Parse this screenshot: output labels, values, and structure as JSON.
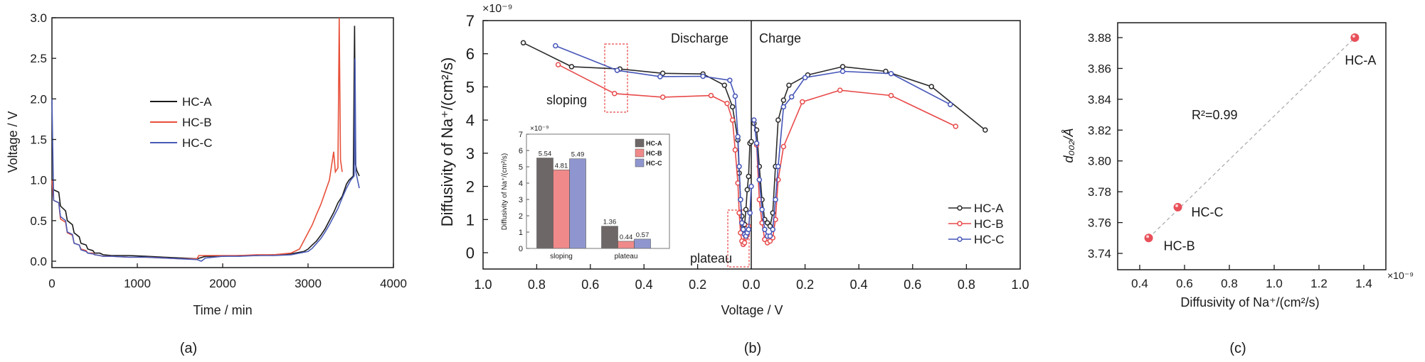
{
  "chart_data": [
    {
      "id": "a",
      "type": "line",
      "panel_label": "(a)",
      "xlabel": "Time / min",
      "ylabel": "Voltage / V",
      "xlim": [
        0,
        4000
      ],
      "ylim": [
        -0.1,
        3.0
      ],
      "xticks": [
        0,
        1000,
        2000,
        3000,
        4000
      ],
      "yticks": [
        0.0,
        0.5,
        1.0,
        1.5,
        2.0,
        2.5,
        3.0
      ],
      "ytick_labels": [
        "0.0",
        "0.5",
        "1.0",
        "1.5",
        "2.0",
        "2.5",
        "3.0"
      ],
      "legend": {
        "placement": "center-left",
        "entries": [
          "HC-A",
          "HC-B",
          "HC-C"
        ]
      },
      "series": [
        {
          "name": "HC-A",
          "color": "#1a1a1a",
          "x": [
            0,
            20,
            80,
            100,
            160,
            180,
            240,
            260,
            320,
            340,
            400,
            420,
            480,
            500,
            560,
            600,
            700,
            900,
            1100,
            1300,
            1500,
            1700,
            1800,
            2000,
            2200,
            2400,
            2600,
            2800,
            2950,
            3000,
            3050,
            3100,
            3150,
            3200,
            3250,
            3300,
            3350,
            3400,
            3450,
            3480,
            3530,
            3545,
            3555,
            3570,
            3600
          ],
          "y": [
            1.0,
            0.88,
            0.85,
            0.68,
            0.62,
            0.5,
            0.45,
            0.35,
            0.3,
            0.22,
            0.2,
            0.15,
            0.13,
            0.1,
            0.1,
            0.08,
            0.07,
            0.07,
            0.06,
            0.05,
            0.04,
            0.03,
            0.06,
            0.06,
            0.07,
            0.07,
            0.08,
            0.09,
            0.12,
            0.15,
            0.2,
            0.25,
            0.32,
            0.4,
            0.5,
            0.6,
            0.72,
            0.8,
            0.95,
            1.0,
            1.05,
            2.9,
            1.2,
            1.12,
            1.05
          ]
        },
        {
          "name": "HC-B",
          "color": "#e8503a",
          "x": [
            0,
            20,
            80,
            100,
            160,
            180,
            240,
            260,
            320,
            340,
            400,
            420,
            480,
            500,
            560,
            600,
            700,
            900,
            1100,
            1300,
            1500,
            1700,
            1720,
            1800,
            2000,
            2200,
            2400,
            2600,
            2800,
            2900,
            2950,
            3000,
            3050,
            3100,
            3150,
            3200,
            3250,
            3300,
            3320,
            3350,
            3365,
            3380,
            3400
          ],
          "y": [
            1.0,
            0.75,
            0.72,
            0.52,
            0.48,
            0.35,
            0.32,
            0.22,
            0.2,
            0.15,
            0.13,
            0.1,
            0.1,
            0.08,
            0.07,
            0.06,
            0.06,
            0.05,
            0.05,
            0.04,
            0.03,
            0.03,
            0.07,
            0.07,
            0.07,
            0.07,
            0.08,
            0.08,
            0.1,
            0.15,
            0.25,
            0.35,
            0.45,
            0.58,
            0.7,
            0.85,
            1.0,
            1.35,
            1.1,
            1.15,
            3.0,
            1.25,
            1.1
          ]
        },
        {
          "name": "HC-C",
          "color": "#4a5bb5",
          "x": [
            0,
            20,
            80,
            100,
            160,
            180,
            240,
            260,
            320,
            340,
            400,
            420,
            480,
            500,
            560,
            600,
            700,
            900,
            1100,
            1300,
            1500,
            1700,
            1750,
            1800,
            2000,
            2200,
            2400,
            2600,
            2800,
            3000,
            3050,
            3100,
            3150,
            3200,
            3250,
            3300,
            3350,
            3400,
            3450,
            3500,
            3540,
            3550,
            3560,
            3600
          ],
          "y": [
            2.0,
            0.75,
            0.72,
            0.55,
            0.5,
            0.36,
            0.33,
            0.22,
            0.2,
            0.14,
            0.12,
            0.1,
            0.09,
            0.08,
            0.07,
            0.06,
            0.06,
            0.05,
            0.05,
            0.04,
            0.03,
            0.02,
            0.0,
            0.04,
            0.06,
            0.06,
            0.07,
            0.07,
            0.08,
            0.12,
            0.16,
            0.22,
            0.28,
            0.36,
            0.45,
            0.55,
            0.65,
            0.78,
            0.9,
            1.0,
            1.05,
            2.5,
            1.1,
            0.9
          ]
        }
      ]
    },
    {
      "id": "b",
      "type": "line",
      "panel_label": "(b)",
      "xlabel": "Voltage / V",
      "ylabel": "Diffusivity of Na⁺/(cm²/s)",
      "y_multiplier": "×10⁻⁹",
      "ylim": [
        -0.5,
        7
      ],
      "xlim_discharge": [
        1.0,
        0.0
      ],
      "xlim_charge": [
        0.0,
        1.0
      ],
      "xticks_discharge": [
        "1.0",
        "0.8",
        "0.6",
        "0.4",
        "0.2",
        "0.0"
      ],
      "xticks_charge": [
        "0.2",
        "0.4",
        "0.6",
        "0.8",
        "1.0"
      ],
      "yticks": [
        0,
        1,
        2,
        3,
        4,
        5,
        6,
        7
      ],
      "annotations": {
        "discharge": "Discharge",
        "charge": "Charge",
        "sloping": "sloping",
        "plateau": "plateau"
      },
      "legend": {
        "placement": "bottom-right",
        "entries": [
          "HC-A",
          "HC-B",
          "HC-C"
        ]
      },
      "series": [
        {
          "name": "HC-A",
          "color": "#2b2b2b",
          "discharge": {
            "x": [
              0.85,
              0.67,
              0.49,
              0.33,
              0.18,
              0.1,
              0.07,
              0.05,
              0.045,
              0.04,
              0.035,
              0.03,
              0.025,
              0.02,
              0.015,
              0.01,
              0.005,
              0.0
            ],
            "y": [
              6.33,
              5.61,
              5.54,
              5.41,
              5.39,
              5.05,
              4.4,
              3.4,
              2.4,
              1.6,
              1.1,
              0.8,
              0.85,
              1.3,
              1.9,
              2.3,
              3.3,
              3.35
            ]
          },
          "charge": {
            "x": [
              0.01,
              0.02,
              0.03,
              0.04,
              0.05,
              0.06,
              0.07,
              0.08,
              0.09,
              0.1,
              0.12,
              0.14,
              0.21,
              0.34,
              0.5,
              0.67,
              0.87
            ],
            "y": [
              3.9,
              3.7,
              2.6,
              1.6,
              1.0,
              0.9,
              0.8,
              1.2,
              2.6,
              4.0,
              4.6,
              5.05,
              5.36,
              5.61,
              5.47,
              5.01,
              3.7
            ]
          }
        },
        {
          "name": "HC-B",
          "color": "#e84a4a",
          "discharge": {
            "x": [
              0.72,
              0.51,
              0.33,
              0.15,
              0.09,
              0.07,
              0.06,
              0.05,
              0.045,
              0.04,
              0.035,
              0.03,
              0.025,
              0.02,
              0.015,
              0.01
            ],
            "y": [
              5.67,
              4.8,
              4.69,
              4.74,
              4.5,
              4.0,
              3.1,
              2.1,
              1.2,
              0.6,
              0.35,
              0.25,
              0.3,
              0.45,
              0.55,
              0.8
            ]
          },
          "charge": {
            "x": [
              0.02,
              0.03,
              0.04,
              0.05,
              0.06,
              0.07,
              0.08,
              0.09,
              0.1,
              0.12,
              0.19,
              0.33,
              0.52,
              0.76
            ],
            "y": [
              3.25,
              1.6,
              0.9,
              0.4,
              0.3,
              0.35,
              0.45,
              1.0,
              2.2,
              3.2,
              4.55,
              4.9,
              4.74,
              3.81
            ]
          }
        },
        {
          "name": "HC-C",
          "color": "#4555b8",
          "discharge": {
            "x": [
              0.73,
              0.5,
              0.34,
              0.18,
              0.08,
              0.06,
              0.05,
              0.045,
              0.04,
              0.035,
              0.03,
              0.025,
              0.02,
              0.015,
              0.01,
              0.005,
              0.0
            ],
            "y": [
              6.24,
              5.5,
              5.31,
              5.32,
              5.2,
              4.72,
              3.5,
              2.6,
              1.6,
              0.9,
              0.7,
              0.55,
              0.5,
              0.6,
              0.7,
              1.2,
              2.0
            ]
          },
          "charge": {
            "x": [
              0.01,
              0.02,
              0.03,
              0.04,
              0.05,
              0.06,
              0.07,
              0.08,
              0.09,
              0.1,
              0.12,
              0.15,
              0.2,
              0.34,
              0.52,
              0.74
            ],
            "y": [
              4.0,
              3.3,
              2.2,
              1.3,
              0.7,
              0.5,
              0.5,
              0.7,
              1.6,
              2.6,
              4.4,
              4.7,
              5.28,
              5.47,
              5.4,
              4.47
            ]
          }
        }
      ]
    },
    {
      "id": "b-inset",
      "type": "bar",
      "ylabel": "Diffusivity of Na⁺/(cm²/s)",
      "y_multiplier": "×10⁻⁹",
      "categories": [
        "sloping",
        "plateau"
      ],
      "ylim": [
        0,
        7
      ],
      "yticks": [
        0,
        1,
        2,
        3,
        4,
        5,
        6,
        7
      ],
      "legend": {
        "placement": "top-right",
        "entries": [
          "HC-A",
          "HC-B",
          "HC-C"
        ]
      },
      "series": [
        {
          "name": "HC-A",
          "color": "#6e6767",
          "values": [
            5.54,
            1.36
          ],
          "labels": [
            "5.54",
            "1.36"
          ]
        },
        {
          "name": "HC-B",
          "color": "#f08a8a",
          "values": [
            4.81,
            0.44
          ],
          "labels": [
            "4.81",
            "0.44"
          ]
        },
        {
          "name": "HC-C",
          "color": "#8f96cf",
          "values": [
            5.49,
            0.57
          ],
          "labels": [
            "5.49",
            "0.57"
          ]
        }
      ]
    },
    {
      "id": "c",
      "type": "scatter",
      "panel_label": "(c)",
      "xlabel": "Diffusivity of Na⁺/(cm²/s)",
      "x_multiplier": "×10⁻⁹",
      "ylabel": "d₀₀₂/Å",
      "xlim": [
        0.3,
        1.5
      ],
      "ylim": [
        3.73,
        3.89
      ],
      "xticks": [
        0.4,
        0.6,
        0.8,
        1.0,
        1.2,
        1.4
      ],
      "xtick_labels": [
        "0.4",
        "0.6",
        "0.8",
        "1.0",
        "1.2",
        "1.4"
      ],
      "yticks": [
        3.74,
        3.76,
        3.78,
        3.8,
        3.82,
        3.84,
        3.86,
        3.88
      ],
      "ytick_labels": [
        "3.74",
        "3.76",
        "3.78",
        "3.80",
        "3.82",
        "3.84",
        "3.86",
        "3.88"
      ],
      "marker_color": "#e8505a",
      "fit_line_color": "#a8a8a8",
      "annotation": "R²=0.99",
      "annotation_color": "#e03c3c",
      "points": [
        {
          "label": "HC-A",
          "x": 1.36,
          "y": 3.88
        },
        {
          "label": "HC-C",
          "x": 0.57,
          "y": 3.77
        },
        {
          "label": "HC-B",
          "x": 0.44,
          "y": 3.75
        }
      ]
    }
  ]
}
